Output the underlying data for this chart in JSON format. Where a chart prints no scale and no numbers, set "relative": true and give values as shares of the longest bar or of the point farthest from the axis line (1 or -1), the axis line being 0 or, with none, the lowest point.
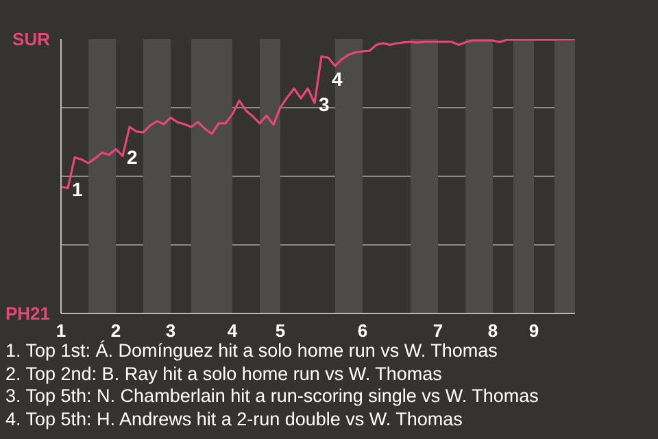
{
  "chart_data": {
    "type": "line",
    "relative": true,
    "categories": [
      "1",
      null,
      null,
      null,
      null,
      null,
      null,
      null,
      "2",
      null,
      null,
      null,
      null,
      null,
      null,
      null,
      "3",
      null,
      null,
      null,
      null,
      null,
      null,
      null,
      null,
      "4",
      null,
      null,
      null,
      null,
      null,
      null,
      "5",
      null,
      null,
      null,
      null,
      null,
      null,
      null,
      null,
      null,
      null,
      null,
      "6",
      null,
      null,
      null,
      null,
      null,
      null,
      null,
      null,
      null,
      null,
      "7",
      null,
      null,
      null,
      null,
      null,
      null,
      null,
      "8",
      null,
      null,
      null,
      null,
      null,
      "9",
      null,
      null,
      null,
      null,
      null,
      null
    ],
    "series": [
      {
        "color": "#e8457a",
        "values": [
          0.462,
          0.457,
          0.569,
          0.561,
          0.548,
          0.566,
          0.586,
          0.578,
          0.599,
          0.574,
          0.68,
          0.663,
          0.66,
          0.685,
          0.701,
          0.69,
          0.714,
          0.697,
          0.69,
          0.68,
          0.698,
          0.673,
          0.655,
          0.693,
          0.693,
          0.726,
          0.776,
          0.739,
          0.718,
          0.693,
          0.721,
          0.688,
          0.751,
          0.787,
          0.82,
          0.784,
          0.82,
          0.767,
          0.937,
          0.932,
          0.902,
          0.927,
          0.944,
          0.952,
          0.955,
          0.957,
          0.979,
          0.985,
          0.979,
          0.985,
          0.988,
          0.99,
          0.987,
          0.99,
          0.99,
          0.99,
          0.99,
          0.99,
          0.979,
          0.988,
          0.995,
          0.995,
          0.995,
          0.995,
          0.989,
          0.997,
          0.998,
          0.998,
          0.998,
          0.998,
          0.998,
          0.998,
          0.998,
          0.999,
          0.999,
          1
        ]
      }
    ],
    "grid": "y",
    "marker": "none",
    "line_style": "solid",
    "annotations": [
      "1",
      "2",
      "3",
      "4",
      "1. Top 1st: Á. Domínguez hit a solo home run vs W. Thomas",
      "2. Top 2nd: B. Ray hit a solo home run vs W. Thomas",
      "3. Top 5th: N. Chamberlain hit a run-scoring single vs W. Thomas",
      "4. Top 5th: H. Andrews hit a 2-run double vs W. Thomas",
      "SUR",
      "PH21"
    ]
  }
}
